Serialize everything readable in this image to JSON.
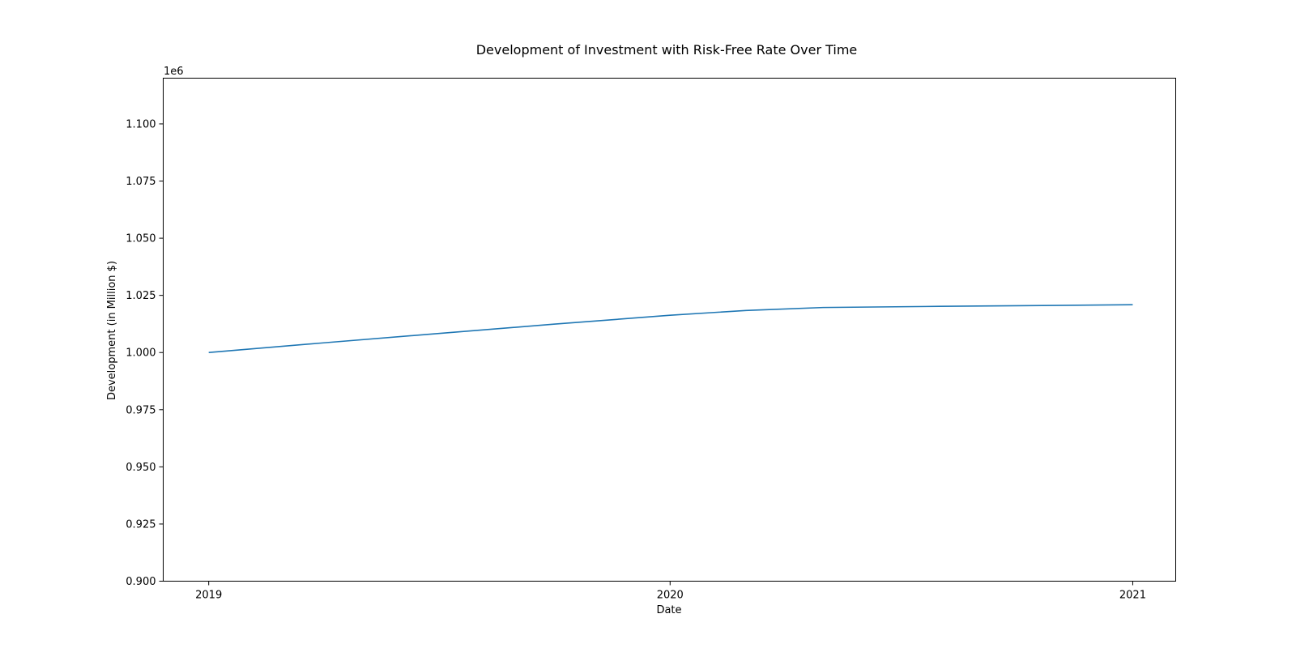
{
  "chart_data": {
    "type": "line",
    "title": "Development of Investment with Risk-Free Rate Over Time",
    "xlabel": "Date",
    "ylabel": "Development (in Million $)",
    "y_offset_label": "1e6",
    "x_ticks": [
      "2019",
      "2020",
      "2021"
    ],
    "y_ticks": [
      "0.900",
      "0.925",
      "0.950",
      "0.975",
      "1.000",
      "1.025",
      "1.050",
      "1.075",
      "1.100"
    ],
    "xlim": [
      "2018-11-26",
      "2021-02-04"
    ],
    "ylim": [
      900000,
      1120000
    ],
    "grid": false,
    "series": [
      {
        "color": "#1f77b4",
        "points": [
          [
            "2019-01-01",
            1000000
          ],
          [
            "2019-04-01",
            1004200
          ],
          [
            "2019-07-01",
            1008300
          ],
          [
            "2019-10-01",
            1012400
          ],
          [
            "2020-01-01",
            1016300
          ],
          [
            "2020-03-01",
            1018400
          ],
          [
            "2020-05-01",
            1019700
          ],
          [
            "2020-08-01",
            1020200
          ],
          [
            "2020-11-01",
            1020600
          ],
          [
            "2021-01-01",
            1020900
          ]
        ]
      }
    ]
  }
}
